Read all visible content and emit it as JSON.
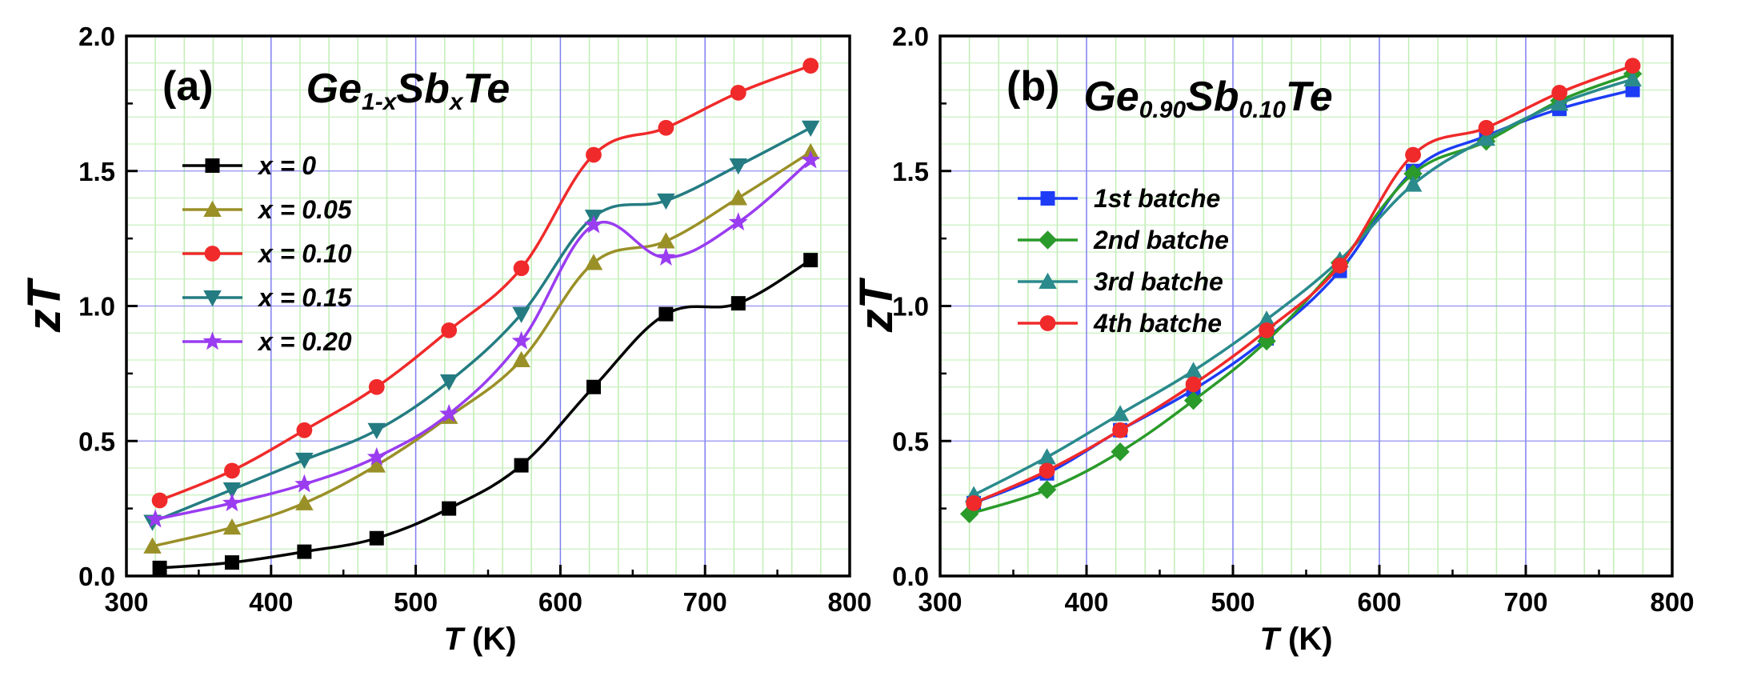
{
  "chart_data": [
    {
      "type": "line",
      "panel_label": "(a)",
      "title": {
        "main": "Ge",
        "sub1": "1-x",
        "main2": "Sb",
        "sub2": "x",
        "main3": "Te"
      },
      "xlabel": {
        "italic": "T",
        "rest": " (K)"
      },
      "ylabel": "zT",
      "xlim": [
        300,
        800
      ],
      "ylim": [
        0.0,
        2.0
      ],
      "xticks": [
        "300",
        "400",
        "500",
        "600",
        "700",
        "800"
      ],
      "yticks": [
        "0.0",
        "0.5",
        "1.0",
        "1.5",
        "2.0"
      ],
      "grid": true,
      "legend_position": "upper-left",
      "series": [
        {
          "name": "x = 0",
          "color": "#000000",
          "marker": "square",
          "x": [
            323,
            373,
            423,
            473,
            523,
            573,
            623,
            673,
            723,
            773
          ],
          "y": [
            0.03,
            0.05,
            0.09,
            0.14,
            0.25,
            0.41,
            0.7,
            0.97,
            1.01,
            1.17
          ]
        },
        {
          "name": "x = 0.05",
          "color": "#9a9028",
          "marker": "triangle-up",
          "x": [
            318,
            373,
            423,
            473,
            523,
            573,
            623,
            673,
            723,
            773
          ],
          "y": [
            0.11,
            0.18,
            0.27,
            0.41,
            0.59,
            0.8,
            1.16,
            1.24,
            1.4,
            1.57
          ]
        },
        {
          "name": "x = 0.10",
          "color": "#f02a2a",
          "marker": "circle",
          "x": [
            323,
            373,
            423,
            473,
            523,
            573,
            623,
            673,
            723,
            773
          ],
          "y": [
            0.28,
            0.39,
            0.54,
            0.7,
            0.91,
            1.14,
            1.56,
            1.66,
            1.79,
            1.89
          ]
        },
        {
          "name": "x = 0.15",
          "color": "#247c82",
          "marker": "triangle-down",
          "x": [
            318,
            373,
            423,
            473,
            523,
            573,
            623,
            673,
            723,
            773
          ],
          "y": [
            0.2,
            0.32,
            0.43,
            0.54,
            0.72,
            0.97,
            1.33,
            1.39,
            1.52,
            1.66
          ]
        },
        {
          "name": "x = 0.20",
          "color": "#9a3cf0",
          "marker": "star",
          "x": [
            320,
            373,
            423,
            473,
            523,
            573,
            623,
            673,
            723,
            773
          ],
          "y": [
            0.21,
            0.27,
            0.34,
            0.44,
            0.6,
            0.87,
            1.3,
            1.18,
            1.31,
            1.54
          ]
        }
      ]
    },
    {
      "type": "line",
      "panel_label": "(b)",
      "title": {
        "main": "Ge",
        "sub1": "0.90",
        "main2": "Sb",
        "sub2": "0.10",
        "main3": "Te"
      },
      "xlabel": {
        "italic": "T",
        "rest": " (K)"
      },
      "ylabel": "zT",
      "xlim": [
        300,
        800
      ],
      "ylim": [
        0.0,
        2.0
      ],
      "xticks": [
        "300",
        "400",
        "500",
        "600",
        "700",
        "800"
      ],
      "yticks": [
        "0.0",
        "0.5",
        "1.0",
        "1.5",
        "2.0"
      ],
      "grid": true,
      "legend_position": "upper-left",
      "series": [
        {
          "name": "1st batche",
          "color": "#1e3cf5",
          "marker": "square",
          "x": [
            323,
            373,
            423,
            473,
            523,
            573,
            623,
            673,
            723,
            773
          ],
          "y": [
            0.27,
            0.38,
            0.54,
            0.69,
            0.88,
            1.13,
            1.5,
            1.63,
            1.73,
            1.8
          ]
        },
        {
          "name": "2nd batche",
          "color": "#2a9a2a",
          "marker": "diamond",
          "x": [
            320,
            373,
            423,
            473,
            523,
            573,
            623,
            673,
            723,
            773
          ],
          "y": [
            0.23,
            0.32,
            0.46,
            0.65,
            0.87,
            1.16,
            1.49,
            1.61,
            1.76,
            1.86
          ]
        },
        {
          "name": "3rd batche",
          "color": "#2a8a8c",
          "marker": "triangle-up",
          "x": [
            323,
            373,
            423,
            473,
            523,
            573,
            623,
            673,
            723,
            773
          ],
          "y": [
            0.3,
            0.44,
            0.6,
            0.76,
            0.95,
            1.17,
            1.45,
            1.62,
            1.75,
            1.84
          ]
        },
        {
          "name": "4th batche",
          "color": "#f02a2a",
          "marker": "circle",
          "x": [
            323,
            373,
            423,
            473,
            523,
            573,
            623,
            673,
            723,
            773
          ],
          "y": [
            0.27,
            0.39,
            0.54,
            0.71,
            0.91,
            1.15,
            1.56,
            1.66,
            1.79,
            1.89
          ]
        }
      ]
    }
  ]
}
